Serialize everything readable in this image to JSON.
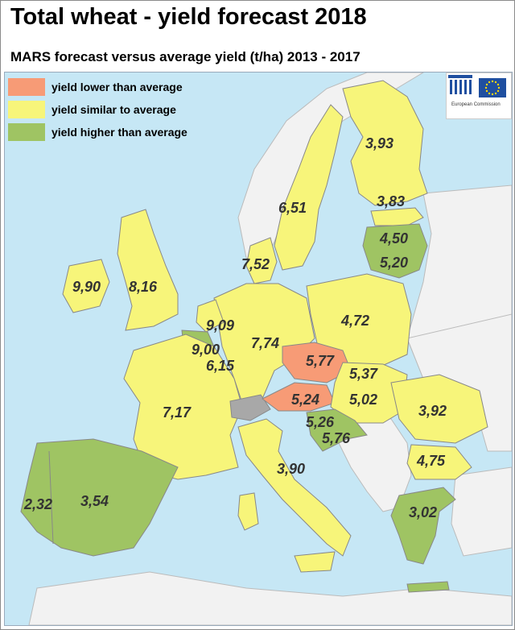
{
  "title": "Total wheat - yield forecast 2018",
  "subtitle": "MARS forecast versus average yield (t/ha) 2013 - 2017",
  "legend": [
    {
      "label": "yield lower than average",
      "color": "#f79b76"
    },
    {
      "label": "yield similar to average",
      "color": "#f7f57a"
    },
    {
      "label": "yield higher than average",
      "color": "#9fc463"
    }
  ],
  "colors": {
    "sea": "#c6e7f5",
    "non_eu": "#f2f2f2",
    "no_data": "#a8a8a8"
  },
  "logo": {
    "icon": "european-commission-logo",
    "text": "European Commission"
  },
  "regions": [
    {
      "name": "Finland",
      "value": "3,93",
      "category": "similar"
    },
    {
      "name": "Sweden",
      "value": "6,51",
      "category": "similar"
    },
    {
      "name": "Estonia",
      "value": "3,83",
      "category": "similar"
    },
    {
      "name": "Latvia",
      "value": "4,50",
      "category": "higher"
    },
    {
      "name": "Lithuania",
      "value": "5,20",
      "category": "higher"
    },
    {
      "name": "Denmark",
      "value": "7,52",
      "category": "similar"
    },
    {
      "name": "Ireland",
      "value": "9,90",
      "category": "similar"
    },
    {
      "name": "United Kingdom",
      "value": "8,16",
      "category": "similar"
    },
    {
      "name": "Netherlands",
      "value": "9,09",
      "category": "similar"
    },
    {
      "name": "Belgium",
      "value": "9,00",
      "category": "higher"
    },
    {
      "name": "Luxembourg",
      "value": "6,15",
      "category": "similar"
    },
    {
      "name": "Germany",
      "value": "7,74",
      "category": "similar"
    },
    {
      "name": "Poland",
      "value": "4,72",
      "category": "similar"
    },
    {
      "name": "Czechia",
      "value": "5,77",
      "category": "lower"
    },
    {
      "name": "Slovakia",
      "value": "5,37",
      "category": "similar"
    },
    {
      "name": "Austria",
      "value": "5,24",
      "category": "lower"
    },
    {
      "name": "Hungary",
      "value": "5,02",
      "category": "similar"
    },
    {
      "name": "Slovenia",
      "value": "5,26",
      "category": "higher"
    },
    {
      "name": "Croatia",
      "value": "5,76",
      "category": "higher"
    },
    {
      "name": "France",
      "value": "7,17",
      "category": "similar"
    },
    {
      "name": "Romania",
      "value": "3,92",
      "category": "similar"
    },
    {
      "name": "Bulgaria",
      "value": "4,75",
      "category": "similar"
    },
    {
      "name": "Italy",
      "value": "3,90",
      "category": "similar"
    },
    {
      "name": "Greece",
      "value": "3,02",
      "category": "higher"
    },
    {
      "name": "Portugal",
      "value": "2,32",
      "category": "higher"
    },
    {
      "name": "Spain",
      "value": "3,54",
      "category": "higher"
    }
  ]
}
